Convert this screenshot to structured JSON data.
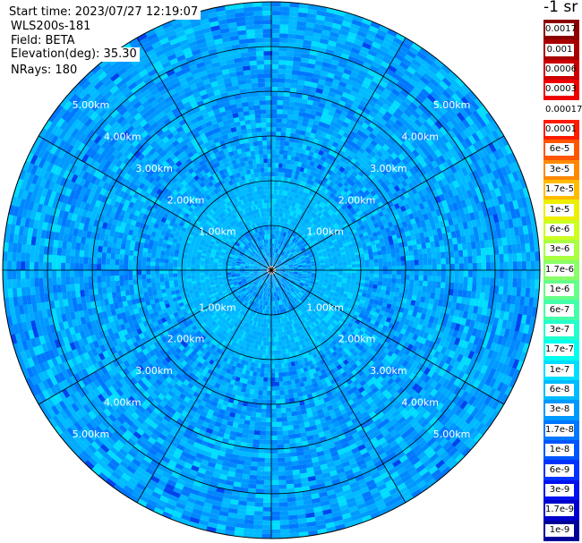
{
  "header": {
    "start_time": "Start time: 2023/07/27 12:19:07",
    "site": "WLS200s-181",
    "field": "Field: BETA",
    "elevation": "Elevation(deg): 35.30",
    "nrays": "NRays: 180"
  },
  "colorbar": {
    "unit": "-1 sr",
    "labels": [
      "0.0017",
      "0.001",
      "0.0006",
      "0.0003",
      "0.00017",
      "0.0001",
      "6e-5",
      "3e-5",
      "1.7e-5",
      "1e-5",
      "6e-6",
      "3e-6",
      "1.7e-6",
      "1e-6",
      "6e-7",
      "3e-7",
      "1.7e-7",
      "1e-7",
      "6e-8",
      "3e-8",
      "1.7e-8",
      "1e-8",
      "6e-9",
      "3e-9",
      "1.7e-9",
      "1e-9"
    ],
    "colors": [
      "#8b0000",
      "#a80000",
      "#cc0000",
      "#ee0000",
      "#ffffff",
      "#ff1a00",
      "#ff5500",
      "#ff8800",
      "#ffbb00",
      "#eeee00",
      "#ccff20",
      "#aaff40",
      "#88ff66",
      "#66ff88",
      "#44ffaa",
      "#22ffcc",
      "#00ffee",
      "#00ddff",
      "#00bbff",
      "#0099ff",
      "#0077ff",
      "#0055ff",
      "#0033ff",
      "#0011ee",
      "#0000cc",
      "#000099"
    ]
  },
  "chart_data": {
    "type": "heatmap",
    "projection": "polar (PPI scan)",
    "field": "BETA",
    "nrays": 180,
    "range_km": [
      0,
      6
    ],
    "range_rings_km": [
      1,
      2,
      3,
      4,
      5
    ],
    "ring_labels": [
      "1.00km",
      "2.00km",
      "3.00km",
      "4.00km",
      "5.00km"
    ],
    "azimuth_spokes_deg": [
      0,
      30,
      60,
      90,
      120,
      150,
      180,
      210,
      240,
      270,
      300,
      330
    ],
    "dominant_value_range": [
      "1e-8",
      "1.7e-7"
    ],
    "colormap": "jet",
    "log_scale": true
  }
}
